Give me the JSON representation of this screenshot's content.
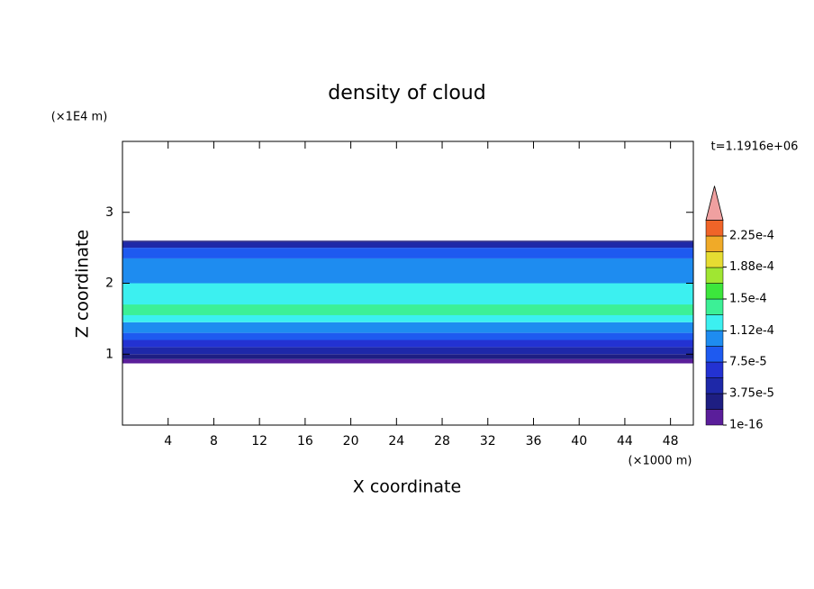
{
  "chart_data": {
    "type": "contour",
    "title": "density of cloud",
    "x_label": "X coordinate",
    "y_label": "Z coordinate",
    "x_unit": "(×1000 m)",
    "y_unit": "(×1E4 m)",
    "time_label": "t=1.1916e+06",
    "xlim": [
      0,
      50
    ],
    "ylim": [
      0,
      4
    ],
    "xticks": [
      4,
      8,
      12,
      16,
      20,
      24,
      28,
      32,
      36,
      40,
      44,
      48
    ],
    "yticks": [
      1,
      2,
      3
    ],
    "colorbar": {
      "clim": [
        0,
        0.00024375
      ],
      "colors": [
        "#5a1e9a",
        "#1e1e82",
        "#1e28a8",
        "#2332d2",
        "#1e5af0",
        "#1e8cf0",
        "#3cf0f0",
        "#3cf096",
        "#3ce63c",
        "#a0e632",
        "#e6dc32",
        "#f0aa28",
        "#f06428"
      ],
      "extend_color": "#f0a0a0",
      "ticks": [
        {
          "value": 1e-16,
          "label": "1e-16"
        },
        {
          "value": 3.75e-05,
          "label": "3.75e-5"
        },
        {
          "value": 7.5e-05,
          "label": "7.5e-5"
        },
        {
          "value": 0.000112,
          "label": "1.12e-4"
        },
        {
          "value": 0.00015,
          "label": "1.5e-4"
        },
        {
          "value": 0.000188,
          "label": "1.88e-4"
        },
        {
          "value": 0.000225,
          "label": "2.25e-4"
        }
      ]
    },
    "layers": [
      {
        "z": [
          0.87,
          0.93
        ],
        "value": 1e-05
      },
      {
        "z": [
          0.93,
          1.0
        ],
        "value": 3e-05
      },
      {
        "z": [
          1.0,
          1.1
        ],
        "value": 4e-05
      },
      {
        "z": [
          1.1,
          1.2
        ],
        "value": 6e-05
      },
      {
        "z": [
          1.2,
          1.3
        ],
        "value": 8e-05
      },
      {
        "z": [
          1.3,
          1.45
        ],
        "value": 0.0001
      },
      {
        "z": [
          1.45,
          2.0
        ],
        "value": 0.00012
      },
      {
        "z": [
          1.55,
          1.7
        ],
        "value": 0.00014
      },
      {
        "z": [
          2.0,
          2.35
        ],
        "value": 0.000105
      },
      {
        "z": [
          2.35,
          2.5
        ],
        "value": 8e-05
      },
      {
        "z": [
          2.5,
          2.58
        ],
        "value": 5e-05
      },
      {
        "z": [
          2.58,
          2.6
        ],
        "value": 3e-05
      }
    ]
  }
}
